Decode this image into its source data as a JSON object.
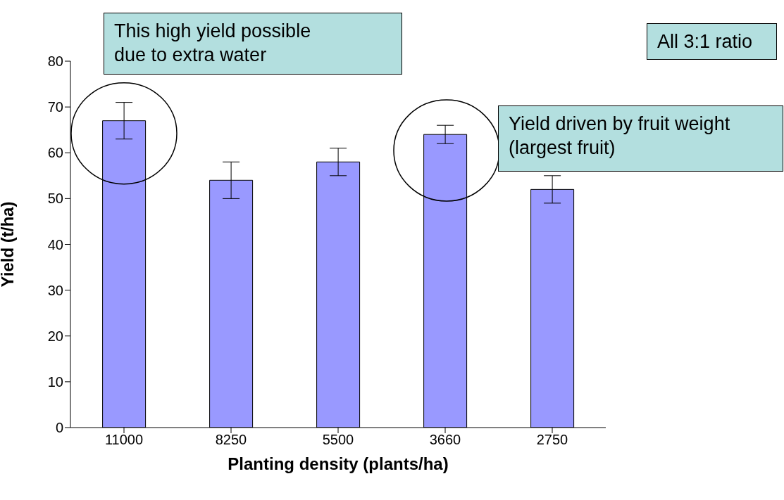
{
  "chart_data": {
    "type": "bar",
    "xlabel": "Planting density (plants/ha)",
    "ylabel": "Yield (t/ha)",
    "categories": [
      "11000",
      "8250",
      "5500",
      "3660",
      "2750"
    ],
    "values": [
      67,
      54,
      58,
      64,
      52
    ],
    "errors": [
      4,
      4,
      3,
      2,
      3
    ],
    "color": "#9999ff",
    "ylim": [
      0,
      80
    ],
    "yticks": [
      0,
      10,
      20,
      30,
      40,
      50,
      60,
      70,
      80
    ],
    "grid": false,
    "legend": false,
    "annotations": [
      {
        "text": "This high yield possible due to extra water",
        "x": "11000",
        "y": 67
      },
      "Yield driven by fruit weight (largest fruit)",
      "All 3:1 ratio"
    ]
  }
}
